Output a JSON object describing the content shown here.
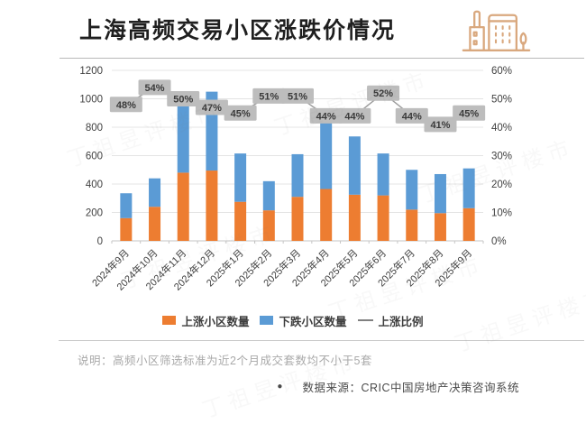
{
  "header": {
    "title": "上海高频交易小区涨跌价情况"
  },
  "chart_data": {
    "type": "bar",
    "subtype": "stacked-bars-with-percent-line",
    "categories": [
      "2024年9月",
      "2024年10月",
      "2024年11月",
      "2024年12月",
      "2025年1月",
      "2025年2月",
      "2025年3月",
      "2025年4月",
      "2025年5月",
      "2025年6月",
      "2025年7月",
      "2025年8月",
      "2025年9月"
    ],
    "series": [
      {
        "name": "上涨小区数量",
        "type": "bar",
        "stack": "total",
        "color": "#ED7D31",
        "values": [
          160,
          240,
          480,
          495,
          275,
          215,
          310,
          365,
          325,
          320,
          220,
          195,
          230
        ]
      },
      {
        "name": "下跌小区数量",
        "type": "bar",
        "stack": "total",
        "color": "#5B9BD5",
        "values": [
          175,
          200,
          480,
          555,
          340,
          205,
          300,
          465,
          410,
          295,
          280,
          275,
          280
        ]
      },
      {
        "name": "上涨比例",
        "type": "line",
        "axis": "right",
        "color": "#9B9B9B",
        "values": [
          48,
          54,
          50,
          47,
          45,
          51,
          51,
          44,
          44,
          52,
          44,
          41,
          45
        ],
        "labels": [
          "48%",
          "54%",
          "50%",
          "47%",
          "45%",
          "51%",
          "51%",
          "44%",
          "44%",
          "52%",
          "44%",
          "41%",
          "45%"
        ]
      }
    ],
    "left_axis": {
      "min": 0,
      "max": 1200,
      "step": 200,
      "ticks": [
        "0",
        "200",
        "400",
        "600",
        "800",
        "1000",
        "1200"
      ]
    },
    "right_axis": {
      "min": 0,
      "max": 60,
      "step": 10,
      "ticks": [
        "0%",
        "10%",
        "20%",
        "30%",
        "40%",
        "50%",
        "60%"
      ],
      "format": "percent"
    },
    "grid": true,
    "legend_position": "bottom",
    "title": "上海高频交易小区涨跌价情况"
  },
  "legend": {
    "items": [
      {
        "label": "上涨小区数量",
        "color": "#ED7D31",
        "marker": "square"
      },
      {
        "label": "下跌小区数量",
        "color": "#5B9BD5",
        "marker": "square"
      },
      {
        "label": "上涨比例",
        "color": "#808080",
        "marker": "line"
      }
    ]
  },
  "footer": {
    "note": "说明：高频小区筛选标准为近2个月成交套数均不小于5套",
    "source_bullet": "●",
    "source": "数据来源：CRIC中国房地产决策咨询系统"
  },
  "watermark": "丁祖昱评楼市",
  "colors": {
    "rise": "#ED7D31",
    "fall": "#5B9BD5",
    "ratio_line": "#9B9B9B",
    "label_bg": "#BDBDBD",
    "label_text": "#3A3A3A",
    "grid": "#E4E4E4",
    "baseline": "#C6C6C6",
    "axis_text": "#404040",
    "icon": "#D9A87E"
  }
}
